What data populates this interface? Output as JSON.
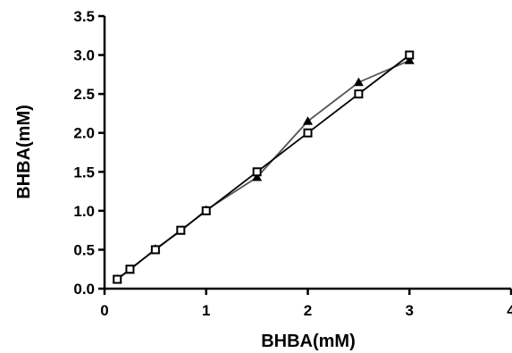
{
  "chart_data": {
    "type": "line",
    "title": "",
    "xlabel": "BHBA(mM)",
    "ylabel": "BHBA(mM)",
    "xlim": [
      0,
      4
    ],
    "ylim": [
      0,
      3.5
    ],
    "x_ticks": [
      "0",
      "1",
      "2",
      "3",
      "4"
    ],
    "y_ticks": [
      "0.0",
      "0.5",
      "1.0",
      "1.5",
      "2.0",
      "2.5",
      "3.0",
      "3.5"
    ],
    "grid": false,
    "legend": "none",
    "series": [
      {
        "marker": "triangle",
        "color": "#555555",
        "x": [
          0.125,
          0.25,
          0.5,
          0.75,
          1.0,
          1.5,
          2.0,
          2.5,
          3.0
        ],
        "y": [
          0.12,
          0.24,
          0.51,
          0.74,
          1.01,
          1.43,
          2.15,
          2.65,
          2.93
        ]
      },
      {
        "marker": "square",
        "color": "#000000",
        "x": [
          0.125,
          0.25,
          0.5,
          0.75,
          1.0,
          1.5,
          2.0,
          2.5,
          3.0
        ],
        "y": [
          0.12,
          0.25,
          0.5,
          0.75,
          1.0,
          1.5,
          2.0,
          2.5,
          3.0
        ]
      }
    ]
  }
}
